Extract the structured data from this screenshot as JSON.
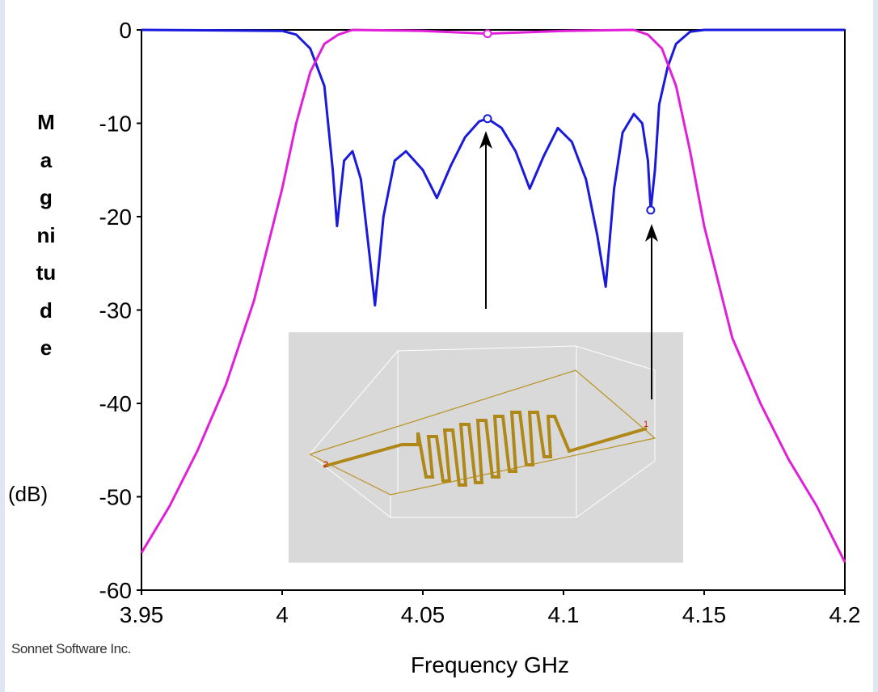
{
  "chart_data": {
    "type": "line",
    "xlabel": "Frequency GHz",
    "ylabel": "Magnitude",
    "ylabel_unit": "(dB)",
    "credit": "Sonnet Software Inc.",
    "xlim": [
      3.95,
      4.2
    ],
    "xticks": [
      3.95,
      4,
      4.05,
      4.1,
      4.15,
      4.2
    ],
    "ylim": [
      -60,
      0
    ],
    "yticks": [
      0,
      -10,
      -20,
      -30,
      -40,
      -50,
      -60
    ],
    "grid": false,
    "series": [
      {
        "color": "#1a1adc",
        "x": [
          3.95,
          4.0,
          4.005,
          4.01,
          4.015,
          4.018,
          4.0195,
          4.022,
          4.025,
          4.028,
          4.031,
          4.033,
          4.036,
          4.04,
          4.044,
          4.05,
          4.055,
          4.06,
          4.065,
          4.07,
          4.073,
          4.078,
          4.083,
          4.088,
          4.093,
          4.098,
          4.103,
          4.108,
          4.112,
          4.115,
          4.118,
          4.121,
          4.125,
          4.128,
          4.13,
          4.131,
          4.1325,
          4.134,
          4.137,
          4.14,
          4.145,
          4.15,
          4.2
        ],
        "values": [
          0,
          -0.1,
          -0.5,
          -2,
          -6,
          -15,
          -21,
          -14,
          -13,
          -16,
          -24,
          -29.5,
          -20,
          -14,
          -13,
          -15,
          -18,
          -14.5,
          -11.5,
          -9.8,
          -9.5,
          -10.5,
          -13,
          -17,
          -13.5,
          -10.5,
          -12,
          -16,
          -22,
          -27.5,
          -17,
          -11,
          -9,
          -10,
          -14,
          -19.3,
          -15,
          -8,
          -4,
          -1.5,
          -0.2,
          0,
          0
        ]
      },
      {
        "color": "#e020d8",
        "x": [
          3.95,
          3.96,
          3.97,
          3.98,
          3.99,
          4.0,
          4.005,
          4.01,
          4.015,
          4.02,
          4.025,
          4.05,
          4.073,
          4.1,
          4.125,
          4.13,
          4.135,
          4.14,
          4.145,
          4.15,
          4.16,
          4.17,
          4.18,
          4.19,
          4.2
        ],
        "values": [
          -56,
          -51,
          -45,
          -38,
          -29,
          -17,
          -10,
          -4.5,
          -1.5,
          -0.5,
          0,
          -0.1,
          -0.4,
          -0.1,
          0,
          -0.5,
          -2,
          -6,
          -13,
          -21,
          -33,
          -40,
          -46,
          -51,
          -57
        ]
      }
    ],
    "markers": [
      {
        "x": 4.073,
        "y": -0.4,
        "color": "#e020d8"
      },
      {
        "x": 4.073,
        "y": -9.5,
        "color": "#1a1adc"
      },
      {
        "x": 4.131,
        "y": -19.3,
        "color": "#1a1adc"
      }
    ]
  }
}
